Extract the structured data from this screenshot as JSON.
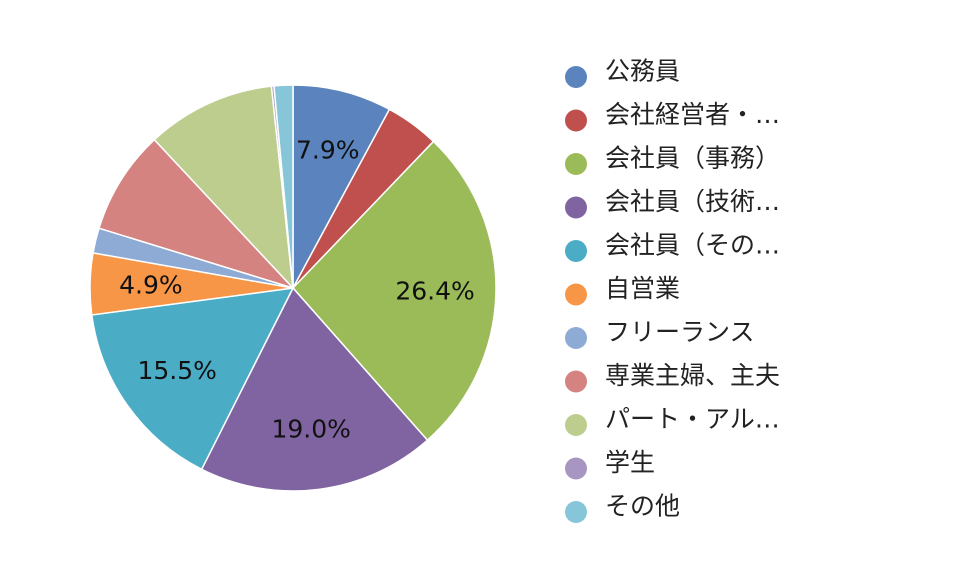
{
  "chart_data": {
    "type": "pie",
    "slices": [
      {
        "label": "公務員",
        "value": 7.9,
        "color": "#5b84bf",
        "show_label": true
      },
      {
        "label": "会社経営者・…",
        "value": 4.3,
        "color": "#c0504d",
        "show_label": false
      },
      {
        "label": "会社員（事務）",
        "value": 26.4,
        "color": "#9bbb59",
        "show_label": true
      },
      {
        "label": "会社員（技術…",
        "value": 19.0,
        "color": "#8064a2",
        "show_label": true
      },
      {
        "label": "会社員（その…",
        "value": 15.5,
        "color": "#4bacc6",
        "show_label": true
      },
      {
        "label": "自営業",
        "value": 4.9,
        "color": "#f79646",
        "show_label": true
      },
      {
        "label": "フリーランス",
        "value": 2.0,
        "color": "#8eabd5",
        "show_label": false
      },
      {
        "label": "専業主婦、主夫",
        "value": 8.3,
        "color": "#d48380",
        "show_label": false
      },
      {
        "label": "パート・アル…",
        "value": 10.3,
        "color": "#bccd8e",
        "show_label": false
      },
      {
        "label": "学生",
        "value": 0.2,
        "color": "#a795c2",
        "show_label": false
      },
      {
        "label": "その他",
        "value": 1.5,
        "color": "#86c6d8",
        "show_label": false
      }
    ],
    "start": "top",
    "direction": "clockwise",
    "legend_placement": "right"
  }
}
